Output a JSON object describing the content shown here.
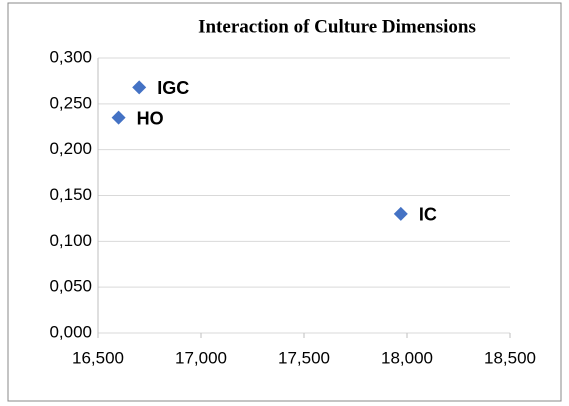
{
  "chart_data": {
    "type": "scatter",
    "title": "Interaction of Culture Dimensions",
    "x": [
      16700,
      16600,
      17970
    ],
    "values": [
      0.268,
      0.235,
      0.13
    ],
    "labels": [
      "IGC",
      "HO",
      "IC"
    ],
    "color": "#4472c4",
    "xlim": [
      16500,
      18500
    ],
    "xticks": [
      {
        "value": 16500,
        "label": "16,500"
      },
      {
        "value": 17000,
        "label": "17,000"
      },
      {
        "value": 17500,
        "label": "17,500"
      },
      {
        "value": 18000,
        "label": "18,000"
      },
      {
        "value": 18500,
        "label": "18,500"
      }
    ],
    "ylim": [
      0,
      0.3
    ],
    "yticks": [
      {
        "value": 0,
        "label": "0,000"
      },
      {
        "value": 0.05,
        "label": "0,050"
      },
      {
        "value": 0.1,
        "label": "0,100"
      },
      {
        "value": 0.15,
        "label": "0,150"
      },
      {
        "value": 0.2,
        "label": "0,200"
      },
      {
        "value": 0.25,
        "label": "0,250"
      },
      {
        "value": 0.3,
        "label": "0,300"
      }
    ],
    "grid": true
  }
}
